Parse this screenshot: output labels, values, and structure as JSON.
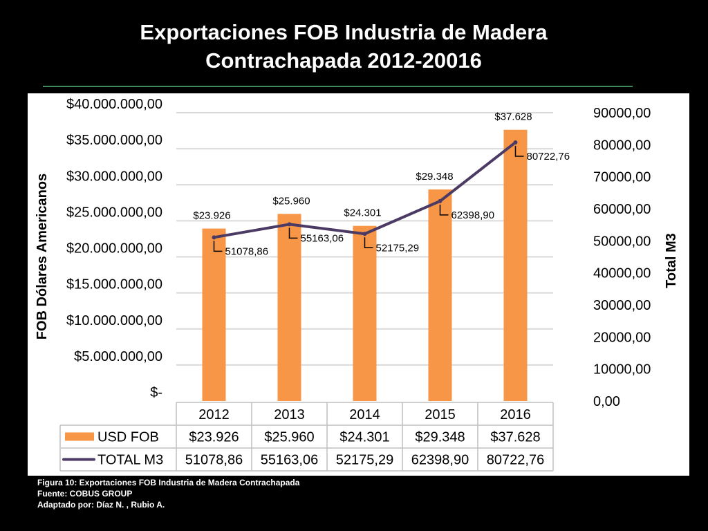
{
  "slide": {
    "title_line1": "Exportaciones FOB Industria de Madera",
    "title_line2": "Contrachapada 2012-20016"
  },
  "caption": {
    "figure": "Figura 10: Exportaciones FOB Industria de Madera Contrachapada",
    "source": "Fuente:  COBUS GROUP",
    "adapted": "Adaptado por: Díaz N. , Rubio  A."
  },
  "chart_data": {
    "type": "bar",
    "title": "",
    "categories": [
      "2012",
      "2013",
      "2014",
      "2015",
      "2016"
    ],
    "ylabel": "FOB Dólares Americanos",
    "y2label": "Total M3",
    "ylim": [
      0,
      40000000
    ],
    "y2lim": [
      0,
      90000
    ],
    "y_ticks": [
      0,
      5000000,
      10000000,
      15000000,
      20000000,
      25000000,
      30000000,
      35000000,
      40000000
    ],
    "y_tick_labels": [
      "$-",
      "$5.000.000,00",
      "$10.000.000,00",
      "$15.000.000,00",
      "$20.000.000,00",
      "$25.000.000,00",
      "$30.000.000,00",
      "$35.000.000,00",
      "$40.000.000,00"
    ],
    "y2_ticks": [
      0,
      10000,
      20000,
      30000,
      40000,
      50000,
      60000,
      70000,
      80000,
      90000
    ],
    "y2_tick_labels": [
      "0,00",
      "10000,00",
      "20000,00",
      "30000,00",
      "40000,00",
      "50000,00",
      "60000,00",
      "70000,00",
      "80000,00",
      "90000,00"
    ],
    "grid": true,
    "legend": "data-table",
    "series": [
      {
        "name": "USD FOB",
        "type": "bar",
        "axis": "left",
        "color": "#f79646",
        "values": [
          23926000,
          25960000,
          24301000,
          29348000,
          37628000
        ],
        "labels": [
          "$23.926",
          "$25.960",
          "$24.301",
          "$29.348",
          "$37.628"
        ]
      },
      {
        "name": "TOTAL M3",
        "type": "line",
        "axis": "right",
        "color": "#4b3a64",
        "values": [
          51078.86,
          55163.06,
          52175.29,
          62398.9,
          80722.76
        ],
        "labels": [
          "51078,86",
          "55163,06",
          "52175,29",
          "62398,90",
          "80722,76"
        ]
      }
    ]
  }
}
